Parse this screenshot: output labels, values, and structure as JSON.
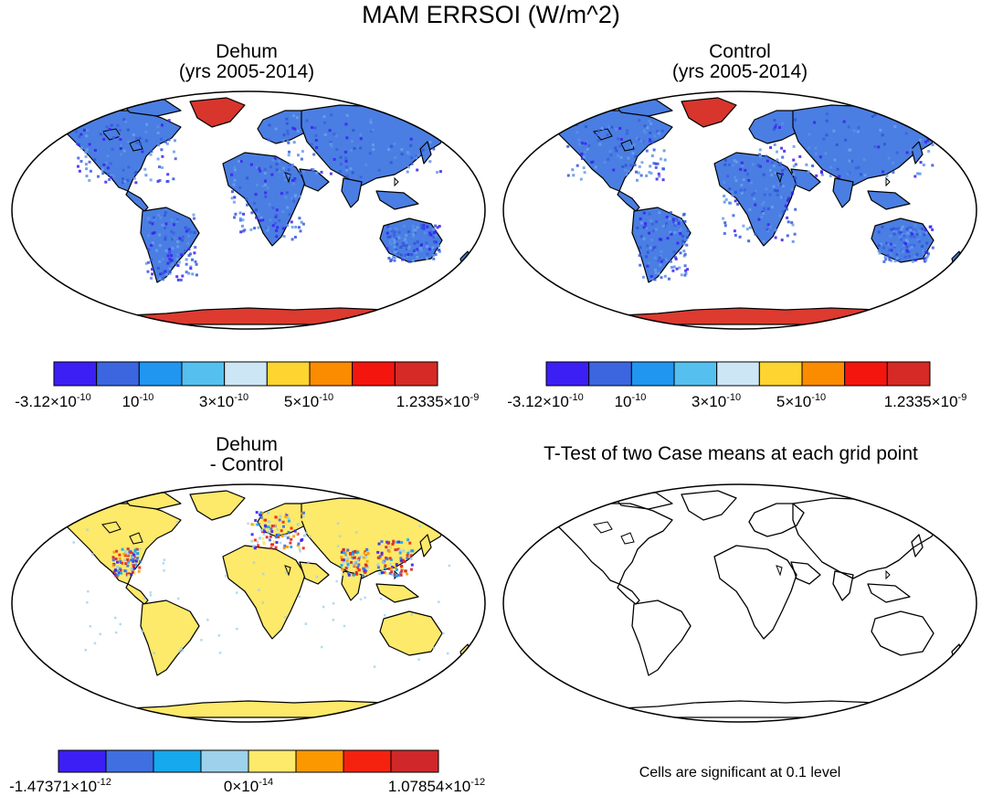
{
  "title": "MAM ERRSOI (W/m^2)",
  "panels": {
    "dehum": {
      "title_line1": "Dehum",
      "title_line2": "(yrs 2005-2014)"
    },
    "control": {
      "title_line1": "Control",
      "title_line2": "(yrs 2005-2014)"
    },
    "diff": {
      "title_line1": "Dehum",
      "title_line2": "- Control"
    },
    "ttest": {
      "title": "T-Test of two Case means at each grid point",
      "note": "Cells are significant at 0.1 level"
    }
  },
  "colorbars": {
    "abs": {
      "colors": [
        "#3c1ff5",
        "#3b66e0",
        "#2196f0",
        "#55c0ef",
        "#cde6f5",
        "#fdd430",
        "#fb8c00",
        "#f5150f",
        "#d52a25"
      ],
      "labels": [
        {
          "mantissa": "-3.12×10",
          "exp": "-10"
        },
        {
          "mantissa": "10",
          "exp": "-10"
        },
        {
          "mantissa": "3×10",
          "exp": "-10"
        },
        {
          "mantissa": "5×10",
          "exp": "-10"
        },
        {
          "mantissa": "1.2335×10",
          "exp": "-9"
        }
      ]
    },
    "diff": {
      "colors": [
        "#3c1ff5",
        "#3f6fe0",
        "#16a9ee",
        "#9ed2ec",
        "#fde96a",
        "#fb9800",
        "#f5220f",
        "#d0272a"
      ],
      "labels": [
        {
          "mantissa": "-1.47371×10",
          "exp": "-12"
        },
        {
          "mantissa": "0×10",
          "exp": "-14"
        },
        {
          "mantissa": "1.07854×10",
          "exp": "-12"
        }
      ]
    }
  },
  "colors": {
    "land_abs": "#4a7ee2",
    "greenland_abs": "#d8352c",
    "antarctica_abs": "#dd3a30",
    "land_diff": "#fde96a",
    "ocean": "#ffffff",
    "outline": "#000000"
  }
}
